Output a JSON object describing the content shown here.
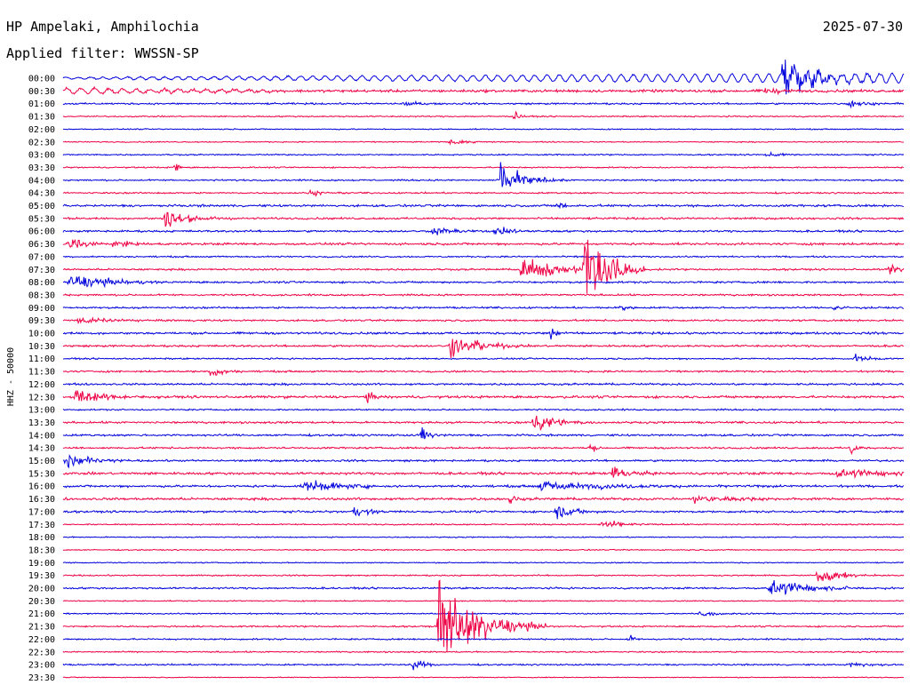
{
  "header": {
    "station": "HP Ampelaki, Amphilochia",
    "date": "2025-07-30",
    "filter": "Applied filter: WWSSN-SP"
  },
  "chart_data": {
    "type": "line",
    "title": "HP Ampelaki, Amphilochia",
    "ylabel": "HHZ - 50000",
    "time_labels": [
      "00:00",
      "00:30",
      "01:00",
      "01:30",
      "02:00",
      "02:30",
      "03:00",
      "03:30",
      "04:00",
      "04:30",
      "05:00",
      "05:30",
      "06:00",
      "06:30",
      "07:00",
      "07:30",
      "08:00",
      "08:30",
      "09:00",
      "09:30",
      "10:00",
      "10:30",
      "11:00",
      "11:30",
      "12:00",
      "12:30",
      "13:00",
      "13:30",
      "14:00",
      "14:30",
      "15:00",
      "15:30",
      "16:00",
      "16:30",
      "17:00",
      "17:30",
      "18:00",
      "18:30",
      "19:00",
      "19:30",
      "20:00",
      "20:30",
      "21:00",
      "21:30",
      "22:00",
      "22:30",
      "23:00",
      "23:30"
    ],
    "colors": {
      "even": "#0000dd",
      "odd": "#ee0044"
    },
    "x_range_minutes": [
      0,
      30
    ],
    "traces": [
      {
        "t": "00:00",
        "noise": 0.6,
        "wave": {
          "start": 0.0,
          "end": 1.0,
          "amp_start": 1.0,
          "amp_end": 5.5,
          "period": 0.22
        },
        "events": [
          {
            "x": 25.7,
            "amp": 14,
            "dur": 1.2
          }
        ]
      },
      {
        "t": "00:30",
        "noise": 1.2,
        "wave": {
          "start": 0.0,
          "end": 0.25,
          "amp_start": 3.0,
          "amp_end": 1.0,
          "period": 0.25
        },
        "events": [
          {
            "x": 25.0,
            "amp": 3,
            "dur": 0.5
          }
        ]
      },
      {
        "t": "01:00",
        "noise": 0.8,
        "events": [
          {
            "x": 12.1,
            "amp": 2,
            "dur": 0.6
          },
          {
            "x": 28.0,
            "amp": 3,
            "dur": 0.6
          }
        ]
      },
      {
        "t": "01:30",
        "noise": 0.6,
        "events": [
          {
            "x": 16.1,
            "amp": 4,
            "dur": 0.2
          }
        ]
      },
      {
        "t": "02:00",
        "noise": 0.5,
        "events": []
      },
      {
        "t": "02:30",
        "noise": 0.5,
        "events": [
          {
            "x": 13.8,
            "amp": 2,
            "dur": 0.8
          }
        ]
      },
      {
        "t": "03:00",
        "noise": 0.6,
        "events": [
          {
            "x": 25.0,
            "amp": 2,
            "dur": 0.6
          }
        ]
      },
      {
        "t": "03:30",
        "noise": 0.6,
        "events": [
          {
            "x": 4.0,
            "amp": 8,
            "dur": 0.1
          }
        ]
      },
      {
        "t": "04:00",
        "noise": 0.7,
        "events": [
          {
            "x": 15.6,
            "amp": 12,
            "dur": 0.8
          }
        ]
      },
      {
        "t": "04:30",
        "noise": 0.7,
        "events": [
          {
            "x": 8.8,
            "amp": 2,
            "dur": 0.6
          }
        ]
      },
      {
        "t": "05:00",
        "noise": 1.0,
        "events": [
          {
            "x": 17.6,
            "amp": 3,
            "dur": 0.4
          }
        ]
      },
      {
        "t": "05:30",
        "noise": 0.9,
        "events": [
          {
            "x": 3.6,
            "amp": 8,
            "dur": 0.8
          }
        ]
      },
      {
        "t": "06:00",
        "noise": 0.9,
        "events": [
          {
            "x": 13.2,
            "amp": 3,
            "dur": 0.8
          },
          {
            "x": 15.4,
            "amp": 3,
            "dur": 0.8
          }
        ]
      },
      {
        "t": "06:30",
        "noise": 1.0,
        "events": [
          {
            "x": 0.2,
            "amp": 5,
            "dur": 0.6
          },
          {
            "x": 1.8,
            "amp": 3,
            "dur": 0.6
          }
        ]
      },
      {
        "t": "07:00",
        "noise": 0.7,
        "events": []
      },
      {
        "t": "07:30",
        "noise": 0.8,
        "events": [
          {
            "x": 16.3,
            "amp": 8,
            "dur": 1.5
          },
          {
            "x": 18.6,
            "amp": 30,
            "dur": 0.8
          },
          {
            "x": 29.5,
            "amp": 5,
            "dur": 0.3
          }
        ]
      },
      {
        "t": "08:00",
        "noise": 0.9,
        "events": [
          {
            "x": 0.2,
            "amp": 6,
            "dur": 1.3
          }
        ]
      },
      {
        "t": "08:30",
        "noise": 0.8,
        "events": []
      },
      {
        "t": "09:00",
        "noise": 0.8,
        "events": [
          {
            "x": 19.9,
            "amp": 4,
            "dur": 0.2
          },
          {
            "x": 27.5,
            "amp": 2,
            "dur": 0.5
          }
        ]
      },
      {
        "t": "09:30",
        "noise": 0.8,
        "events": [
          {
            "x": 0.5,
            "amp": 2,
            "dur": 1.5
          }
        ]
      },
      {
        "t": "10:00",
        "noise": 1.0,
        "events": [
          {
            "x": 17.4,
            "amp": 7,
            "dur": 0.2
          }
        ]
      },
      {
        "t": "10:30",
        "noise": 0.9,
        "events": [
          {
            "x": 13.8,
            "amp": 9,
            "dur": 1.0
          }
        ]
      },
      {
        "t": "11:00",
        "noise": 0.7,
        "events": [
          {
            "x": 28.2,
            "amp": 3,
            "dur": 0.5
          }
        ]
      },
      {
        "t": "11:30",
        "noise": 0.8,
        "events": [
          {
            "x": 5.3,
            "amp": 6,
            "dur": 0.4
          }
        ]
      },
      {
        "t": "12:00",
        "noise": 0.9,
        "events": []
      },
      {
        "t": "12:30",
        "noise": 1.1,
        "events": [
          {
            "x": 0.4,
            "amp": 5,
            "dur": 1.0
          },
          {
            "x": 10.8,
            "amp": 4,
            "dur": 0.3
          }
        ]
      },
      {
        "t": "13:00",
        "noise": 0.7,
        "events": []
      },
      {
        "t": "13:30",
        "noise": 0.9,
        "events": [
          {
            "x": 16.8,
            "amp": 8,
            "dur": 0.8
          }
        ]
      },
      {
        "t": "14:00",
        "noise": 0.9,
        "events": [
          {
            "x": 12.8,
            "amp": 7,
            "dur": 0.3
          }
        ]
      },
      {
        "t": "14:30",
        "noise": 0.8,
        "events": [
          {
            "x": 18.8,
            "amp": 4,
            "dur": 0.2
          },
          {
            "x": 28.1,
            "amp": 7,
            "dur": 0.2
          }
        ]
      },
      {
        "t": "15:00",
        "noise": 0.9,
        "events": [
          {
            "x": 0.1,
            "amp": 7,
            "dur": 0.8
          }
        ]
      },
      {
        "t": "15:30",
        "noise": 1.1,
        "events": [
          {
            "x": 19.6,
            "amp": 6,
            "dur": 0.6
          },
          {
            "x": 27.5,
            "amp": 3,
            "dur": 2.5
          }
        ]
      },
      {
        "t": "16:00",
        "noise": 1.0,
        "events": [
          {
            "x": 8.6,
            "amp": 4,
            "dur": 1.5
          },
          {
            "x": 17.0,
            "amp": 3,
            "dur": 3.0
          }
        ]
      },
      {
        "t": "16:30",
        "noise": 1.1,
        "events": [
          {
            "x": 15.9,
            "amp": 5,
            "dur": 0.2
          },
          {
            "x": 22.5,
            "amp": 3,
            "dur": 1.5
          }
        ]
      },
      {
        "t": "17:00",
        "noise": 0.9,
        "events": [
          {
            "x": 17.6,
            "amp": 5,
            "dur": 0.8
          },
          {
            "x": 10.3,
            "amp": 3,
            "dur": 0.8
          }
        ]
      },
      {
        "t": "17:30",
        "noise": 0.6,
        "events": [
          {
            "x": 19.2,
            "amp": 3,
            "dur": 0.8
          }
        ]
      },
      {
        "t": "18:00",
        "noise": 0.5,
        "events": []
      },
      {
        "t": "18:30",
        "noise": 0.5,
        "events": []
      },
      {
        "t": "19:00",
        "noise": 0.5,
        "events": []
      },
      {
        "t": "19:30",
        "noise": 0.6,
        "events": [
          {
            "x": 26.9,
            "amp": 6,
            "dur": 0.8
          }
        ]
      },
      {
        "t": "20:00",
        "noise": 0.8,
        "events": [
          {
            "x": 25.2,
            "amp": 6,
            "dur": 1.5
          }
        ]
      },
      {
        "t": "20:30",
        "noise": 0.5,
        "events": []
      },
      {
        "t": "21:00",
        "noise": 0.6,
        "events": [
          {
            "x": 22.7,
            "amp": 2,
            "dur": 0.8
          }
        ]
      },
      {
        "t": "21:30",
        "noise": 0.7,
        "events": [
          {
            "x": 13.4,
            "amp": 30,
            "dur": 1.3
          }
        ]
      },
      {
        "t": "22:00",
        "noise": 0.7,
        "events": [
          {
            "x": 20.2,
            "amp": 3,
            "dur": 0.2
          }
        ]
      },
      {
        "t": "22:30",
        "noise": 0.6,
        "events": []
      },
      {
        "t": "23:00",
        "noise": 0.7,
        "events": [
          {
            "x": 12.4,
            "amp": 4,
            "dur": 0.5
          },
          {
            "x": 28.0,
            "amp": 2,
            "dur": 0.8
          }
        ]
      },
      {
        "t": "23:30",
        "noise": 0.4,
        "events": []
      }
    ]
  }
}
